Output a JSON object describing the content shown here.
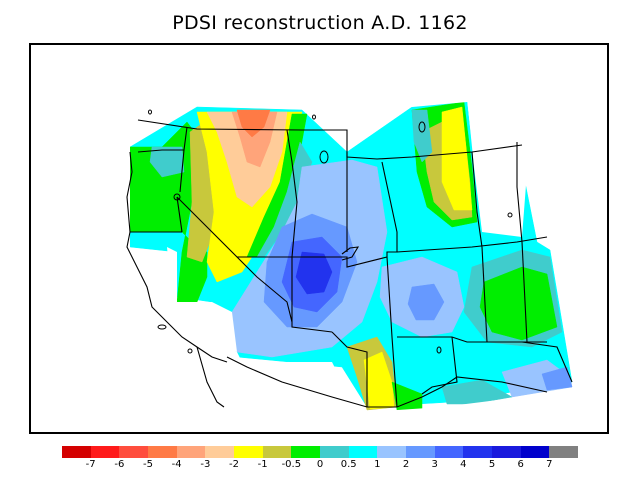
{
  "title": "PDSI reconstruction A.D. 1162",
  "legend": {
    "colors": [
      "#d40000",
      "#ff1a1a",
      "#ff4d3d",
      "#ff7a45",
      "#ffa47a",
      "#ffcc99",
      "#ffff00",
      "#c8c83c",
      "#00ee00",
      "#40cccc",
      "#00ffff",
      "#99c4ff",
      "#6699ff",
      "#4466ff",
      "#2233ee",
      "#1a1add",
      "#0000cc",
      "#808080"
    ],
    "labels": [
      "-7",
      "-6",
      "-5",
      "-4",
      "-3",
      "-2",
      "-1",
      "-0.5",
      "0",
      "0.5",
      "1",
      "2",
      "3",
      "4",
      "5",
      "6",
      "7"
    ]
  },
  "map": {
    "colors": {
      "green": "#00ee00",
      "teal": "#40cccc",
      "cyan": "#00ffff",
      "lightblue": "#99c4ff",
      "medblue": "#6699ff",
      "blue": "#4466ff",
      "darkblue": "#2233ee",
      "yellow": "#ffff00",
      "olive": "#c8c83c",
      "peach": "#ffcc99",
      "salmon": "#ffa47a",
      "orange": "#ff7a45"
    }
  }
}
